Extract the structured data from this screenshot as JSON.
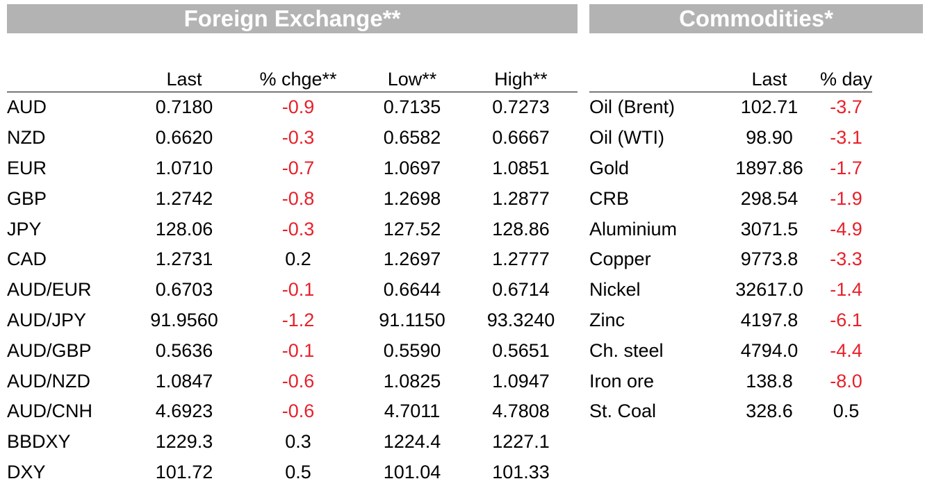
{
  "fx": {
    "title": "Foreign Exchange**",
    "headers": [
      "",
      "Last",
      "% chge**",
      "Low**",
      "High**"
    ],
    "rows": [
      {
        "name": "AUD",
        "last": "0.7180",
        "chge": "-0.9",
        "low": "0.7135",
        "high": "0.7273"
      },
      {
        "name": "NZD",
        "last": "0.6620",
        "chge": "-0.3",
        "low": "0.6582",
        "high": "0.6667"
      },
      {
        "name": "EUR",
        "last": "1.0710",
        "chge": "-0.7",
        "low": "1.0697",
        "high": "1.0851"
      },
      {
        "name": "GBP",
        "last": "1.2742",
        "chge": "-0.8",
        "low": "1.2698",
        "high": "1.2877"
      },
      {
        "name": "JPY",
        "last": "128.06",
        "chge": "-0.3",
        "low": "127.52",
        "high": "128.86"
      },
      {
        "name": "CAD",
        "last": "1.2731",
        "chge": "0.2",
        "low": "1.2697",
        "high": "1.2777"
      },
      {
        "name": "AUD/EUR",
        "last": "0.6703",
        "chge": "-0.1",
        "low": "0.6644",
        "high": "0.6714"
      },
      {
        "name": "AUD/JPY",
        "last": "91.9560",
        "chge": "-1.2",
        "low": "91.1150",
        "high": "93.3240"
      },
      {
        "name": "AUD/GBP",
        "last": "0.5636",
        "chge": "-0.1",
        "low": "0.5590",
        "high": "0.5651"
      },
      {
        "name": "AUD/NZD",
        "last": "1.0847",
        "chge": "-0.6",
        "low": "1.0825",
        "high": "1.0947"
      },
      {
        "name": "AUD/CNH",
        "last": "4.6923",
        "chge": "-0.6",
        "low": "4.7011",
        "high": "4.7808"
      },
      {
        "name": "BBDXY",
        "last": "1229.3",
        "chge": "0.3",
        "low": "1224.4",
        "high": "1227.1"
      },
      {
        "name": "DXY",
        "last": "101.72",
        "chge": "0.5",
        "low": "101.04",
        "high": "101.33"
      }
    ]
  },
  "commodities": {
    "title": "Commodities*",
    "headers": [
      "",
      "Last",
      "% day"
    ],
    "rows": [
      {
        "name": "Oil (Brent)",
        "last": "102.71",
        "day": "-3.7"
      },
      {
        "name": "Oil (WTI)",
        "last": "98.90",
        "day": "-3.1"
      },
      {
        "name": "Gold",
        "last": "1897.86",
        "day": "-1.7"
      },
      {
        "name": "CRB",
        "last": "298.54",
        "day": "-1.9"
      },
      {
        "name": "Aluminium",
        "last": "3071.5",
        "day": "-4.9"
      },
      {
        "name": "Copper",
        "last": "9773.8",
        "day": "-3.3"
      },
      {
        "name": "Nickel",
        "last": "32617.0",
        "day": "-1.4"
      },
      {
        "name": "Zinc",
        "last": "4197.8",
        "day": "-6.1"
      },
      {
        "name": "Ch. steel",
        "last": "4794.0",
        "day": "-4.4"
      },
      {
        "name": "Iron ore",
        "last": "138.8",
        "day": "-8.0"
      },
      {
        "name": "St. Coal",
        "last": "328.6",
        "day": "0.5"
      }
    ]
  },
  "colors": {
    "banner_bg": "#b3b3b3",
    "banner_text": "#ffffff",
    "negative": "#e8202a",
    "positive": "#000000"
  }
}
